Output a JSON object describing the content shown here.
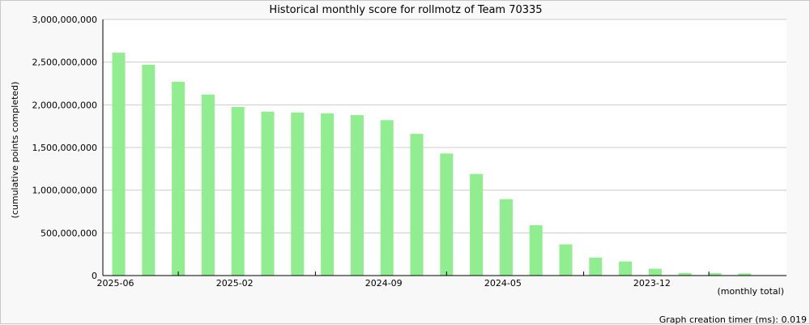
{
  "chart_data": {
    "type": "bar",
    "title": "Historical monthly score for rollmotz of Team 70335",
    "ylabel": "(cumulative points completed)",
    "xlabel": "(monthly total)",
    "footer": "Graph creation timer (ms): 0.019",
    "ylim": [
      0,
      3000000000
    ],
    "yticks": [
      {
        "value": 0,
        "label": "0"
      },
      {
        "value": 500000000,
        "label": "500,000,000"
      },
      {
        "value": 1000000000,
        "label": "1,000,000,000"
      },
      {
        "value": 1500000000,
        "label": "1,500,000,000"
      },
      {
        "value": 2000000000,
        "label": "2,000,000,000"
      },
      {
        "value": 2500000000,
        "label": "2,500,000,000"
      },
      {
        "value": 3000000000,
        "label": "3,000,000,000"
      }
    ],
    "categories": [
      "2025-06",
      "2025-05",
      "2025-04",
      "2025-03",
      "2025-02",
      "2025-01",
      "2024-12",
      "2024-11",
      "2024-10",
      "2024-09",
      "2024-08",
      "2024-07",
      "2024-06",
      "2024-05",
      "2024-04",
      "2024-03",
      "2024-02",
      "2024-01",
      "2023-12",
      "2023-11",
      "2023-10",
      "2023-09",
      "2023-08"
    ],
    "values": [
      2610000000,
      2470000000,
      2270000000,
      2120000000,
      1975000000,
      1920000000,
      1910000000,
      1900000000,
      1880000000,
      1820000000,
      1660000000,
      1430000000,
      1190000000,
      895000000,
      590000000,
      365000000,
      210000000,
      165000000,
      80000000,
      30000000,
      28000000,
      25000000,
      5000000
    ],
    "xtick_labels": [
      {
        "index": 0,
        "label": "2025-06"
      },
      {
        "index": 4,
        "label": "2025-02"
      },
      {
        "index": 9,
        "label": "2024-09"
      },
      {
        "index": 13,
        "label": "2024-05"
      },
      {
        "index": 18,
        "label": "2023-12"
      }
    ],
    "grid": true,
    "colors": {
      "bar": "#90ee90",
      "grid": "#cccccc",
      "plot_bg": "#ffffff"
    }
  }
}
